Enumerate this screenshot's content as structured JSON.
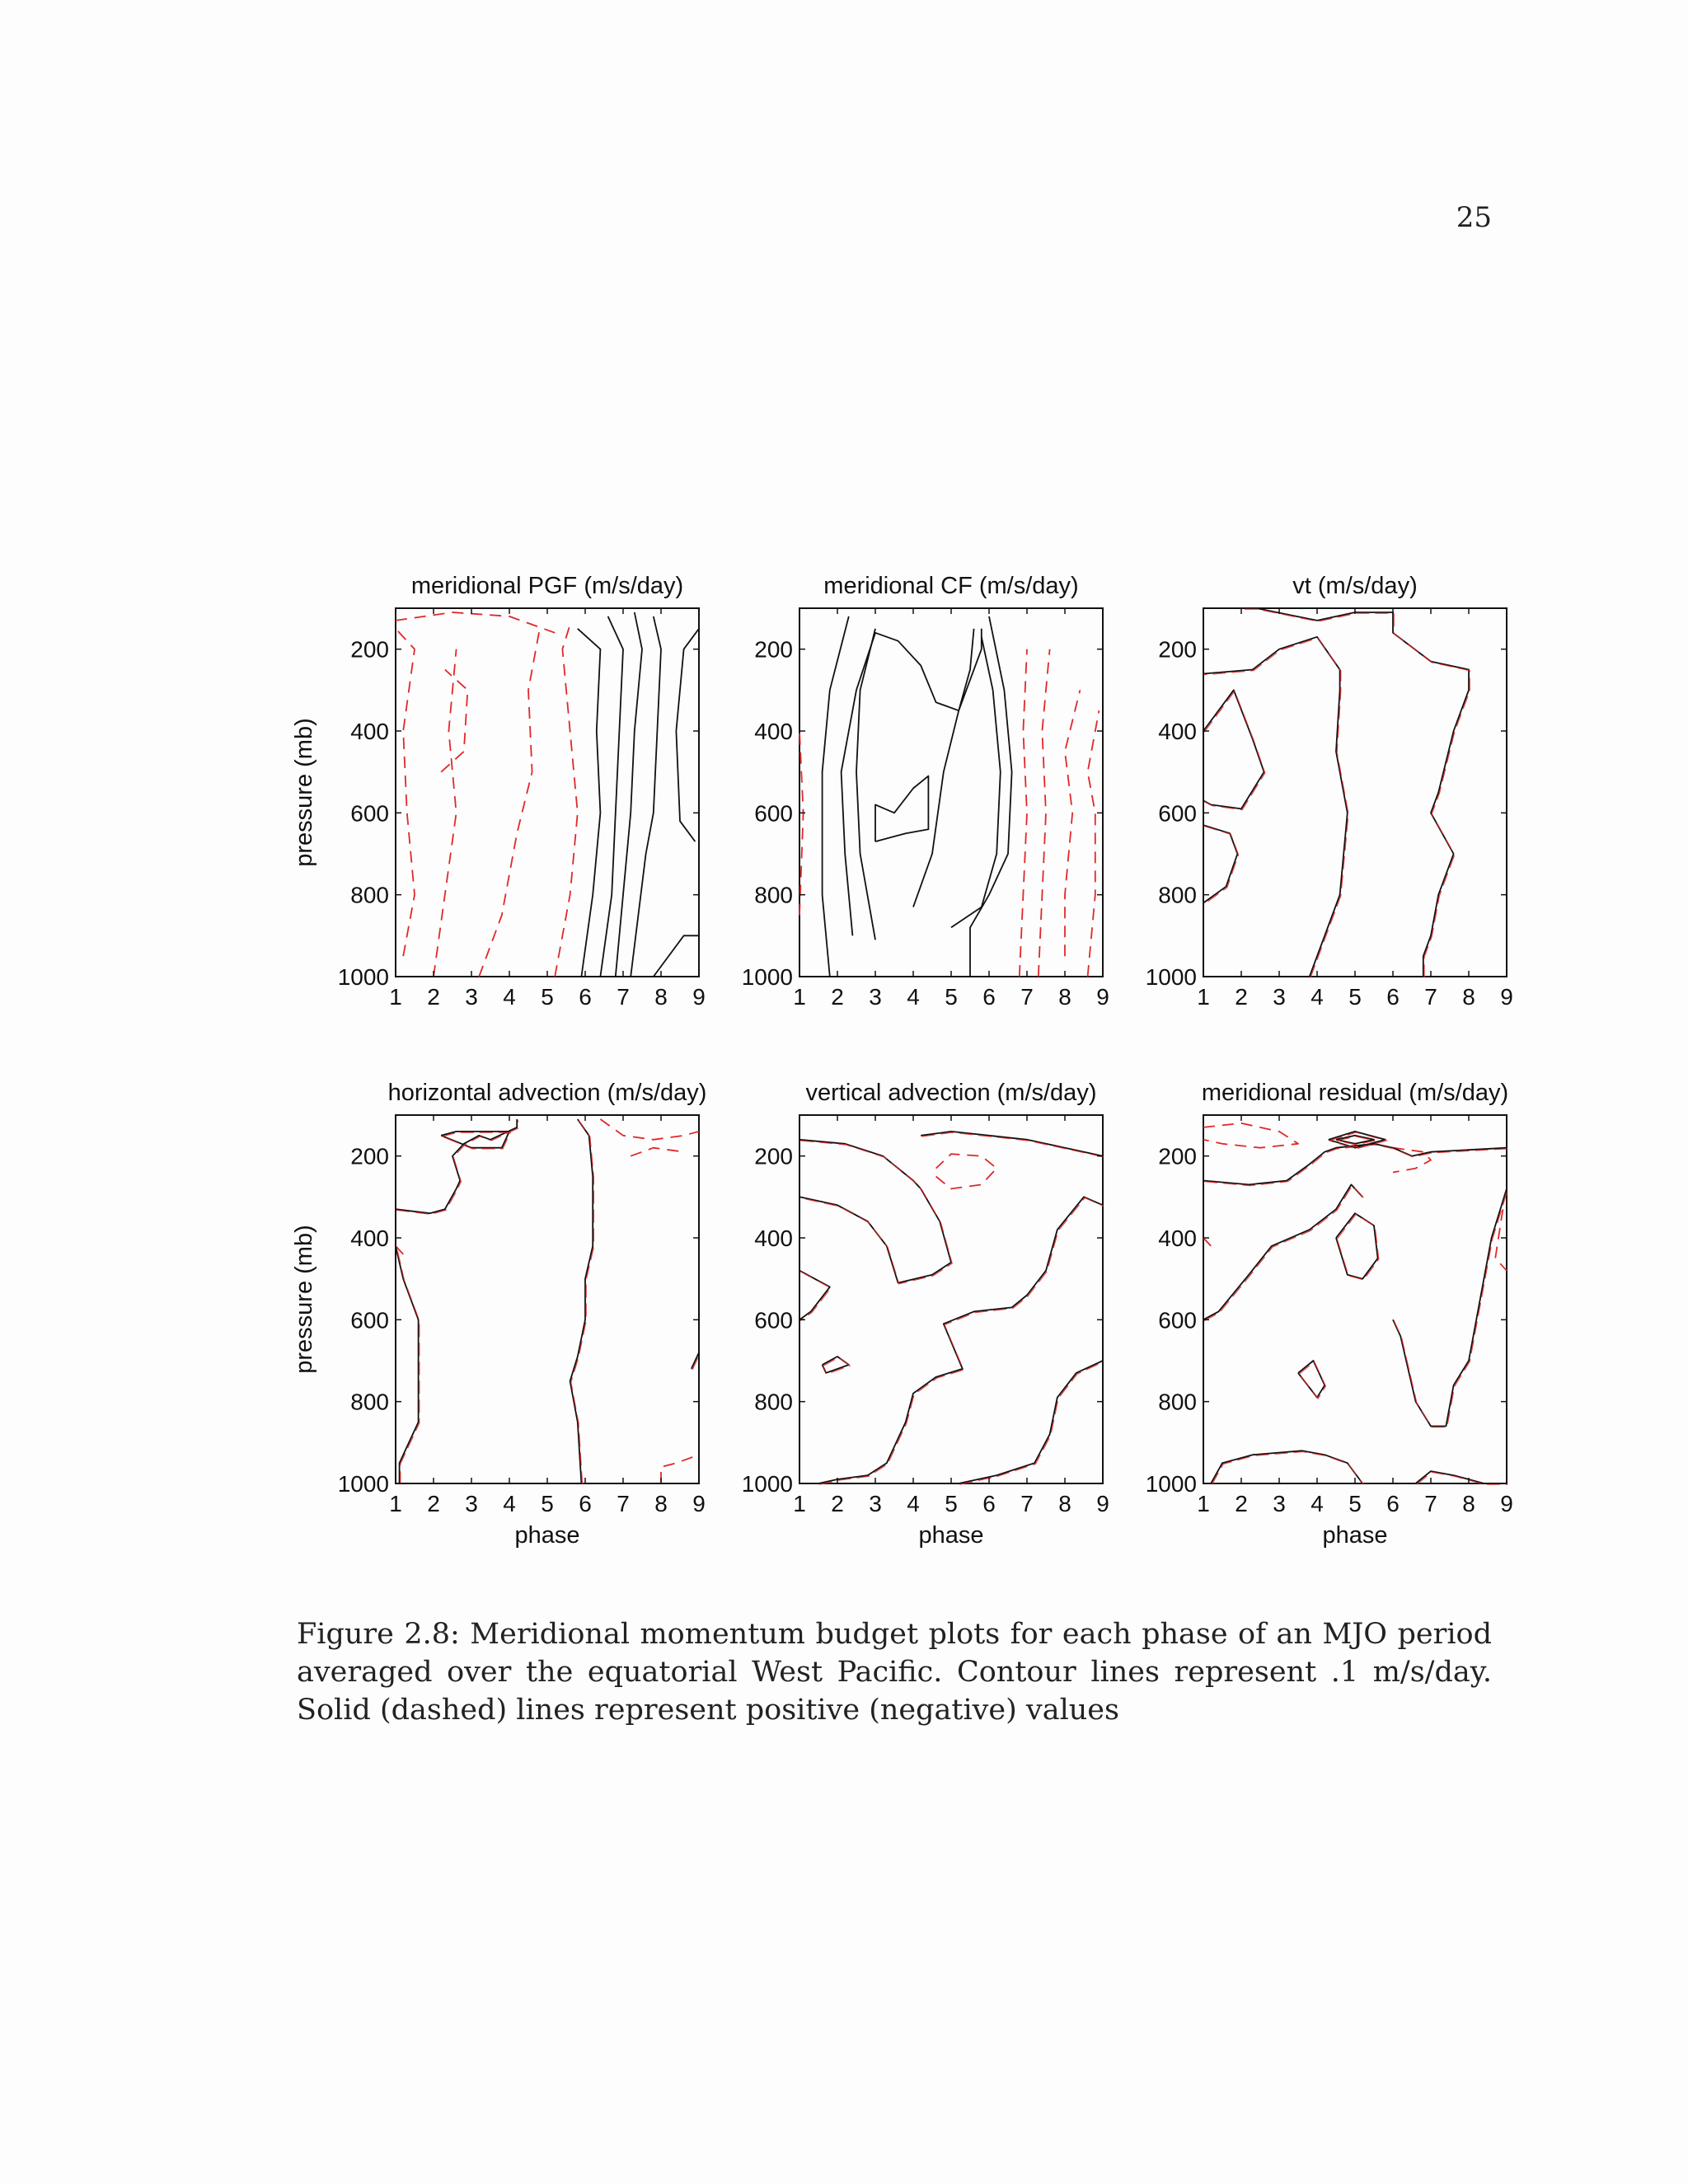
{
  "page_number": "25",
  "caption": "Figure 2.8: Meridional momentum budget plots for each phase of an MJO period averaged over the equatorial West Pacific. Contour lines represent .1 m/s/day. Solid (dashed) lines represent positive (negative) values",
  "colors": {
    "positive_contour": "#111111",
    "negative_contour": "#e0282a",
    "frame": "#111111"
  },
  "chart_data": [
    {
      "type": "contour",
      "title": "meridional PGF (m/s/day)",
      "xlabel": "",
      "ylabel": "pressure (mb)",
      "x_ticks": [
        "1",
        "2",
        "3",
        "4",
        "5",
        "6",
        "7",
        "8",
        "9"
      ],
      "y_ticks": [
        "200",
        "400",
        "600",
        "800",
        "1000"
      ],
      "xlim": [
        1,
        9
      ],
      "ylim": [
        1000,
        100
      ],
      "contour_interval": 0.1
    },
    {
      "type": "contour",
      "title": "meridional CF (m/s/day)",
      "xlabel": "",
      "ylabel": "",
      "x_ticks": [
        "1",
        "2",
        "3",
        "4",
        "5",
        "6",
        "7",
        "8",
        "9"
      ],
      "y_ticks": [
        "200",
        "400",
        "600",
        "800",
        "1000"
      ],
      "xlim": [
        1,
        9
      ],
      "ylim": [
        1000,
        100
      ],
      "contour_interval": 0.1
    },
    {
      "type": "contour",
      "title": "vt (m/s/day)",
      "xlabel": "",
      "ylabel": "",
      "x_ticks": [
        "1",
        "2",
        "3",
        "4",
        "5",
        "6",
        "7",
        "8",
        "9"
      ],
      "y_ticks": [
        "200",
        "400",
        "600",
        "800",
        "1000"
      ],
      "xlim": [
        1,
        9
      ],
      "ylim": [
        1000,
        100
      ],
      "contour_interval": 0.1
    },
    {
      "type": "contour",
      "title": "horizontal advection (m/s/day)",
      "xlabel": "phase",
      "ylabel": "pressure (mb)",
      "x_ticks": [
        "1",
        "2",
        "3",
        "4",
        "5",
        "6",
        "7",
        "8",
        "9"
      ],
      "y_ticks": [
        "200",
        "400",
        "600",
        "800",
        "1000"
      ],
      "xlim": [
        1,
        9
      ],
      "ylim": [
        1000,
        100
      ],
      "contour_interval": 0.1
    },
    {
      "type": "contour",
      "title": "vertical advection (m/s/day)",
      "xlabel": "phase",
      "ylabel": "",
      "x_ticks": [
        "1",
        "2",
        "3",
        "4",
        "5",
        "6",
        "7",
        "8",
        "9"
      ],
      "y_ticks": [
        "200",
        "400",
        "600",
        "800",
        "1000"
      ],
      "xlim": [
        1,
        9
      ],
      "ylim": [
        1000,
        100
      ],
      "contour_interval": 0.1
    },
    {
      "type": "contour",
      "title": "meridional residual (m/s/day)",
      "xlabel": "phase",
      "ylabel": "",
      "x_ticks": [
        "1",
        "2",
        "3",
        "4",
        "5",
        "6",
        "7",
        "8",
        "9"
      ],
      "y_ticks": [
        "200",
        "400",
        "600",
        "800",
        "1000"
      ],
      "xlim": [
        1,
        9
      ],
      "ylim": [
        1000,
        100
      ],
      "contour_interval": 0.1
    }
  ]
}
